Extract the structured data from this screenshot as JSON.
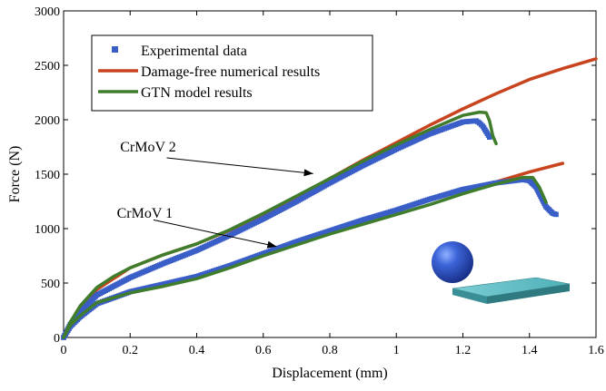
{
  "chart_data": {
    "type": "line",
    "title": "",
    "xlabel": "Displacement (mm)",
    "ylabel": "Force (N)",
    "xlim": [
      0,
      1.6
    ],
    "ylim": [
      0,
      3000
    ],
    "xticks": [
      0,
      0.2,
      0.4,
      0.6,
      0.8,
      1,
      1.2,
      1.4,
      1.6
    ],
    "xtick_labels": [
      "0",
      "0.2",
      "0.4",
      "0.6",
      "0.8",
      "1",
      "1.2",
      "1.4",
      "1.6"
    ],
    "yticks": [
      0,
      500,
      1000,
      1500,
      2000,
      2500,
      3000
    ],
    "ytick_labels": [
      "0",
      "500",
      "1000",
      "1500",
      "2000",
      "2500",
      "3000"
    ],
    "grid": false,
    "legend_position": "top-left",
    "legend": [
      {
        "label": "Experimental data",
        "style": "marker",
        "color": "#3a5ec7"
      },
      {
        "label": "Damage-free numerical results",
        "style": "line",
        "color": "#c8441e"
      },
      {
        "label": "GTN model results",
        "style": "line",
        "color": "#3f7d2c"
      }
    ],
    "series": [
      {
        "name": "Damage-free numerical results",
        "color": "#c8441e",
        "group": "CrMoV 2",
        "x": [
          0,
          0.02,
          0.05,
          0.1,
          0.2,
          0.3,
          0.4,
          0.5,
          0.6,
          0.7,
          0.8,
          0.9,
          1.0,
          1.1,
          1.2,
          1.3,
          1.4,
          1.5,
          1.6
        ],
        "y": [
          0,
          130,
          260,
          440,
          640,
          760,
          860,
          985,
          1130,
          1290,
          1460,
          1630,
          1790,
          1950,
          2100,
          2240,
          2370,
          2470,
          2560
        ]
      },
      {
        "name": "Damage-free numerical results",
        "color": "#c8441e",
        "group": "CrMoV 1",
        "x": [
          0,
          0.02,
          0.05,
          0.1,
          0.2,
          0.3,
          0.4,
          0.5,
          0.6,
          0.7,
          0.8,
          0.9,
          1.0,
          1.1,
          1.2,
          1.3,
          1.4,
          1.5
        ],
        "y": [
          0,
          110,
          200,
          320,
          430,
          490,
          560,
          650,
          760,
          870,
          980,
          1080,
          1170,
          1260,
          1360,
          1430,
          1520,
          1600
        ]
      },
      {
        "name": "GTN model results",
        "color": "#3f7d2c",
        "group": "CrMoV 2",
        "x": [
          0,
          0.02,
          0.05,
          0.1,
          0.15,
          0.2,
          0.3,
          0.4,
          0.5,
          0.6,
          0.7,
          0.8,
          0.9,
          1.0,
          1.1,
          1.2,
          1.25,
          1.27,
          1.28,
          1.29,
          1.3
        ],
        "y": [
          0,
          140,
          290,
          460,
          560,
          640,
          760,
          860,
          990,
          1140,
          1300,
          1460,
          1620,
          1770,
          1910,
          2040,
          2070,
          2065,
          1990,
          1850,
          1780
        ]
      },
      {
        "name": "GTN model results",
        "color": "#3f7d2c",
        "group": "CrMoV 1",
        "x": [
          0,
          0.02,
          0.05,
          0.1,
          0.2,
          0.3,
          0.4,
          0.5,
          0.6,
          0.7,
          0.8,
          0.9,
          1.0,
          1.1,
          1.2,
          1.3,
          1.38,
          1.41,
          1.43,
          1.45
        ],
        "y": [
          0,
          110,
          200,
          320,
          410,
          470,
          540,
          640,
          750,
          850,
          950,
          1040,
          1130,
          1220,
          1320,
          1410,
          1470,
          1470,
          1380,
          1240
        ]
      },
      {
        "name": "Experimental data",
        "color": "#3a5ec7",
        "group": "CrMoV 2",
        "x": [
          0,
          0.02,
          0.05,
          0.1,
          0.2,
          0.3,
          0.4,
          0.5,
          0.6,
          0.7,
          0.8,
          0.9,
          1.0,
          1.1,
          1.2,
          1.24,
          1.25,
          1.26,
          1.27,
          1.28
        ],
        "y": [
          0,
          120,
          230,
          390,
          550,
          680,
          800,
          940,
          1090,
          1250,
          1420,
          1580,
          1730,
          1870,
          1980,
          1990,
          1970,
          1940,
          1890,
          1840
        ]
      },
      {
        "name": "Experimental data",
        "color": "#3a5ec7",
        "group": "CrMoV 1",
        "x": [
          0,
          0.02,
          0.05,
          0.1,
          0.2,
          0.3,
          0.4,
          0.5,
          0.6,
          0.7,
          0.8,
          0.9,
          1.0,
          1.1,
          1.2,
          1.3,
          1.38,
          1.4,
          1.42,
          1.45,
          1.47,
          1.48
        ],
        "y": [
          0,
          100,
          190,
          310,
          420,
          490,
          560,
          660,
          770,
          880,
          980,
          1080,
          1170,
          1270,
          1360,
          1420,
          1450,
          1440,
          1380,
          1200,
          1140,
          1130
        ]
      }
    ],
    "annotations": [
      {
        "text": "CrMoV 2",
        "text_at": [
          0.17,
          1710
        ],
        "arrow_from": [
          0.31,
          1650
        ],
        "arrow_to": [
          0.75,
          1505
        ]
      },
      {
        "text": "CrMoV 1",
        "text_at": [
          0.16,
          1100
        ],
        "arrow_from": [
          0.27,
          1080
        ],
        "arrow_to": [
          0.64,
          835
        ]
      }
    ]
  }
}
